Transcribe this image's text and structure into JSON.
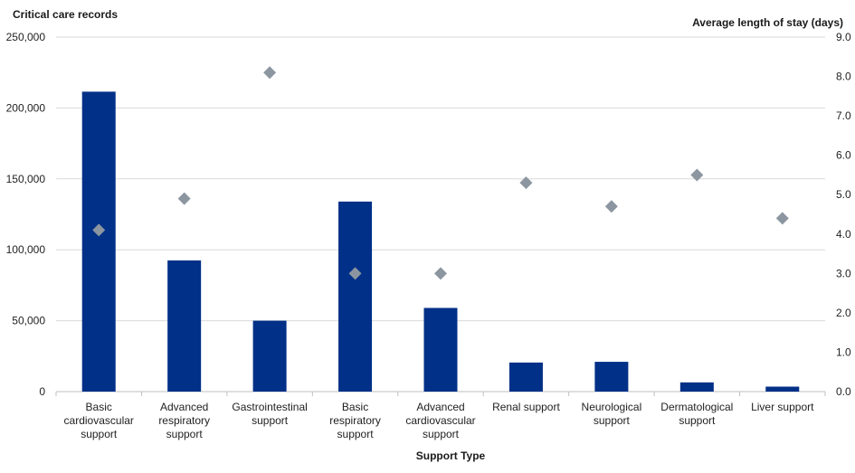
{
  "chart_data": {
    "type": "bar",
    "title": "",
    "xlabel": "Support Type",
    "ylabel": "Critical care records",
    "y2label": "Average length of stay (days)",
    "categories": [
      [
        "Basic",
        "cardiovascular",
        "support"
      ],
      [
        "Advanced",
        "respiratory",
        "support"
      ],
      [
        "Gastrointestinal",
        "support"
      ],
      [
        "Basic",
        "respiratory",
        "support"
      ],
      [
        "Advanced",
        "cardiovascular",
        "support"
      ],
      [
        "Renal support"
      ],
      [
        "Neurological",
        "support"
      ],
      [
        "Dermatological",
        "support"
      ],
      [
        "Liver support"
      ]
    ],
    "ylim": [
      0,
      250000
    ],
    "yticks": [
      "0",
      "50,000",
      "100,000",
      "150,000",
      "200,000",
      "250,000"
    ],
    "y2lim": [
      0,
      9
    ],
    "y2ticks": [
      "0.0",
      "1.0",
      "2.0",
      "3.0",
      "4.0",
      "5.0",
      "6.0",
      "7.0",
      "8.0",
      "9.0"
    ],
    "grid": true,
    "legend": "none",
    "series": [
      {
        "type": "bar",
        "axis": "left",
        "color": "#003087",
        "values": [
          211500,
          92500,
          50000,
          134000,
          59000,
          20500,
          21000,
          6500,
          3500
        ]
      },
      {
        "type": "scatter",
        "axis": "right",
        "marker": "diamond",
        "color": "#8c96a0",
        "values": [
          4.1,
          4.9,
          8.1,
          3.0,
          3.0,
          5.3,
          4.7,
          5.5,
          4.4
        ]
      }
    ]
  }
}
